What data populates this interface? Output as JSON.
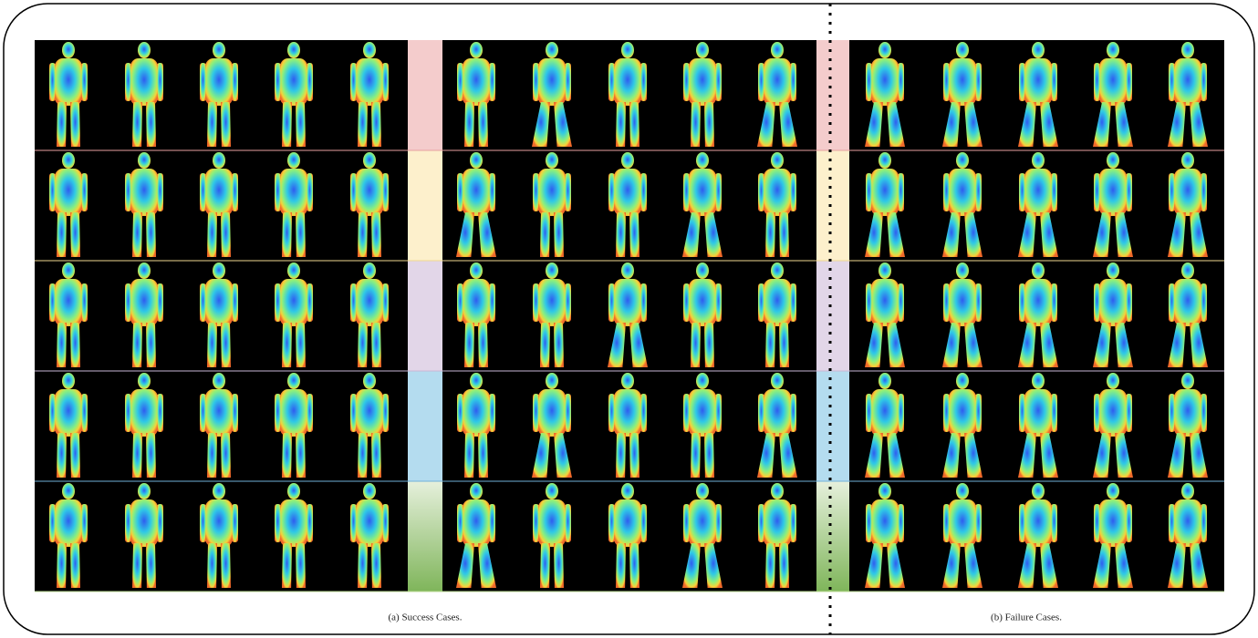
{
  "captions": {
    "success": "(a) Success Cases.",
    "failure": "(b) Failure Cases."
  }
}
